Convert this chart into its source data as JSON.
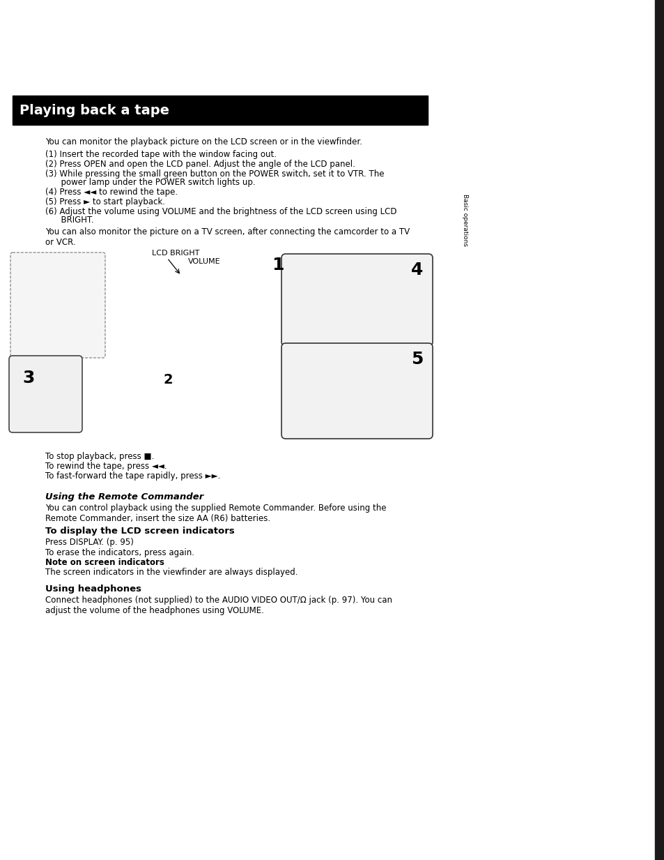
{
  "page_bg": "#ffffff",
  "title_text": "Playing back a tape",
  "title_bg": "#000000",
  "title_color": "#ffffff",
  "title_fontsize": 14,
  "body_fontsize": 8.5,
  "body_color": "#000000",
  "intro_line": "You can monitor the playback picture on the LCD screen or in the viewfinder.",
  "step1": "(1) Insert the recorded tape with the window facing out.",
  "step2": "(2) Press OPEN and open the LCD panel. Adjust the angle of the LCD panel.",
  "step3a": "(3) While pressing the small green button on the POWER switch, set it to VTR. The",
  "step3b": "      power lamp under the POWER switch lights up.",
  "step4": "(4) Press ◄◄ to rewind the tape.",
  "step5": "(5) Press ► to start playback.",
  "step6a": "(6) Adjust the volume using VOLUME and the brightness of the LCD screen using LCD",
  "step6b": "      BRIGHT.",
  "after_steps": "You can also monitor the picture on a TV screen, after connecting the camcorder to a TV\nor VCR.",
  "sidebar_text": "Basic operations",
  "lcd_bright_label": "LCD BRIGHT",
  "volume_label": "VOLUME",
  "stop_line1": "To stop playback, press ■.",
  "stop_line2": "To rewind the tape, press ◄◄.",
  "stop_line3": "To fast-forward the tape rapidly, press ►►.",
  "s1_title": "Using the Remote Commander",
  "s1_body": "You can control playback using the supplied Remote Commander. Before using the\nRemote Commander, insert the size AA (R6) batteries.",
  "s2_title": "To display the LCD screen indicators",
  "s2_body": "Press DISPLAY. (p. 95)\nTo erase the indicators, press again.",
  "s3_title": "Note on screen indicators",
  "s3_body": "The screen indicators in the viewfinder are always displayed.",
  "s4_title": "Using headphones",
  "s4_body": "Connect headphones (not supplied) to the AUDIO VIDEO OUT/Ω jack (p. 97). You can\nadjust the volume of the headphones using VOLUME."
}
